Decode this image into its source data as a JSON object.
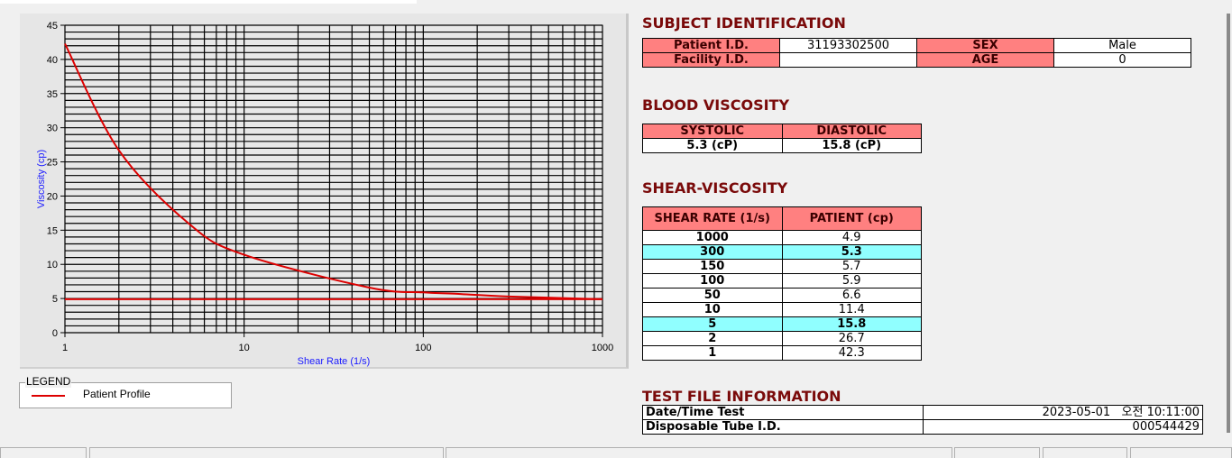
{
  "chart_data": {
    "type": "line",
    "xlabel": "Shear Rate (1/s)",
    "ylabel": "Viscosity (cp)",
    "xscale": "log",
    "xlim": [
      1,
      1000
    ],
    "ylim": [
      0,
      45
    ],
    "xticks": [
      "1",
      "10",
      "100",
      "1000"
    ],
    "yticks": [
      "0",
      "5",
      "10",
      "15",
      "20",
      "25",
      "30",
      "35",
      "40",
      "45"
    ],
    "grid": true,
    "series": [
      {
        "name": "Patient Profile",
        "color": "#dd0000",
        "x": [
          1,
          2,
          5,
          10,
          50,
          100,
          150,
          300,
          1000
        ],
        "y": [
          42.3,
          26.7,
          15.8,
          11.4,
          6.6,
          5.9,
          5.7,
          5.3,
          4.9
        ]
      },
      {
        "color": "#dd0000",
        "x": [
          1,
          1000
        ],
        "y": [
          4.9,
          4.9
        ]
      }
    ]
  },
  "legend": {
    "title": "LEGEND",
    "items": [
      {
        "label": "Patient Profile",
        "color": "#dd0000"
      }
    ]
  },
  "subject": {
    "title": "SUBJECT IDENTIFICATION",
    "patient_id_label": "Patient I.D.",
    "patient_id": "31193302500",
    "sex_label": "SEX",
    "sex": "Male",
    "facility_label": "Facility I.D.",
    "facility": "",
    "age_label": "AGE",
    "age": "0"
  },
  "blood": {
    "title": "BLOOD VISCOSITY",
    "systolic_label": "SYSTOLIC",
    "diastolic_label": "DIASTOLIC",
    "systolic": "5.3 (cP)",
    "diastolic": "15.8 (cP)"
  },
  "shear": {
    "title": "SHEAR-VISCOSITY",
    "col1": "SHEAR RATE (1/s)",
    "col2": "PATIENT (cp)",
    "rows": [
      [
        "1000",
        "4.9"
      ],
      [
        "300",
        "5.3"
      ],
      [
        "150",
        "5.7"
      ],
      [
        "100",
        "5.9"
      ],
      [
        "50",
        "6.6"
      ],
      [
        "10",
        "11.4"
      ],
      [
        "5",
        "15.8"
      ],
      [
        "2",
        "26.7"
      ],
      [
        "1",
        "42.3"
      ]
    ],
    "highlight_color": "#90ffff"
  },
  "testfile": {
    "title": "TEST FILE INFORMATION",
    "date_label": "Date/Time Test",
    "date": "2023-05-01   오전 10:11:00",
    "tube_label": "Disposable Tube I.D.",
    "tube": "000544429"
  },
  "colors": {
    "header": "#ff8080",
    "title": "#7a0a0a"
  }
}
